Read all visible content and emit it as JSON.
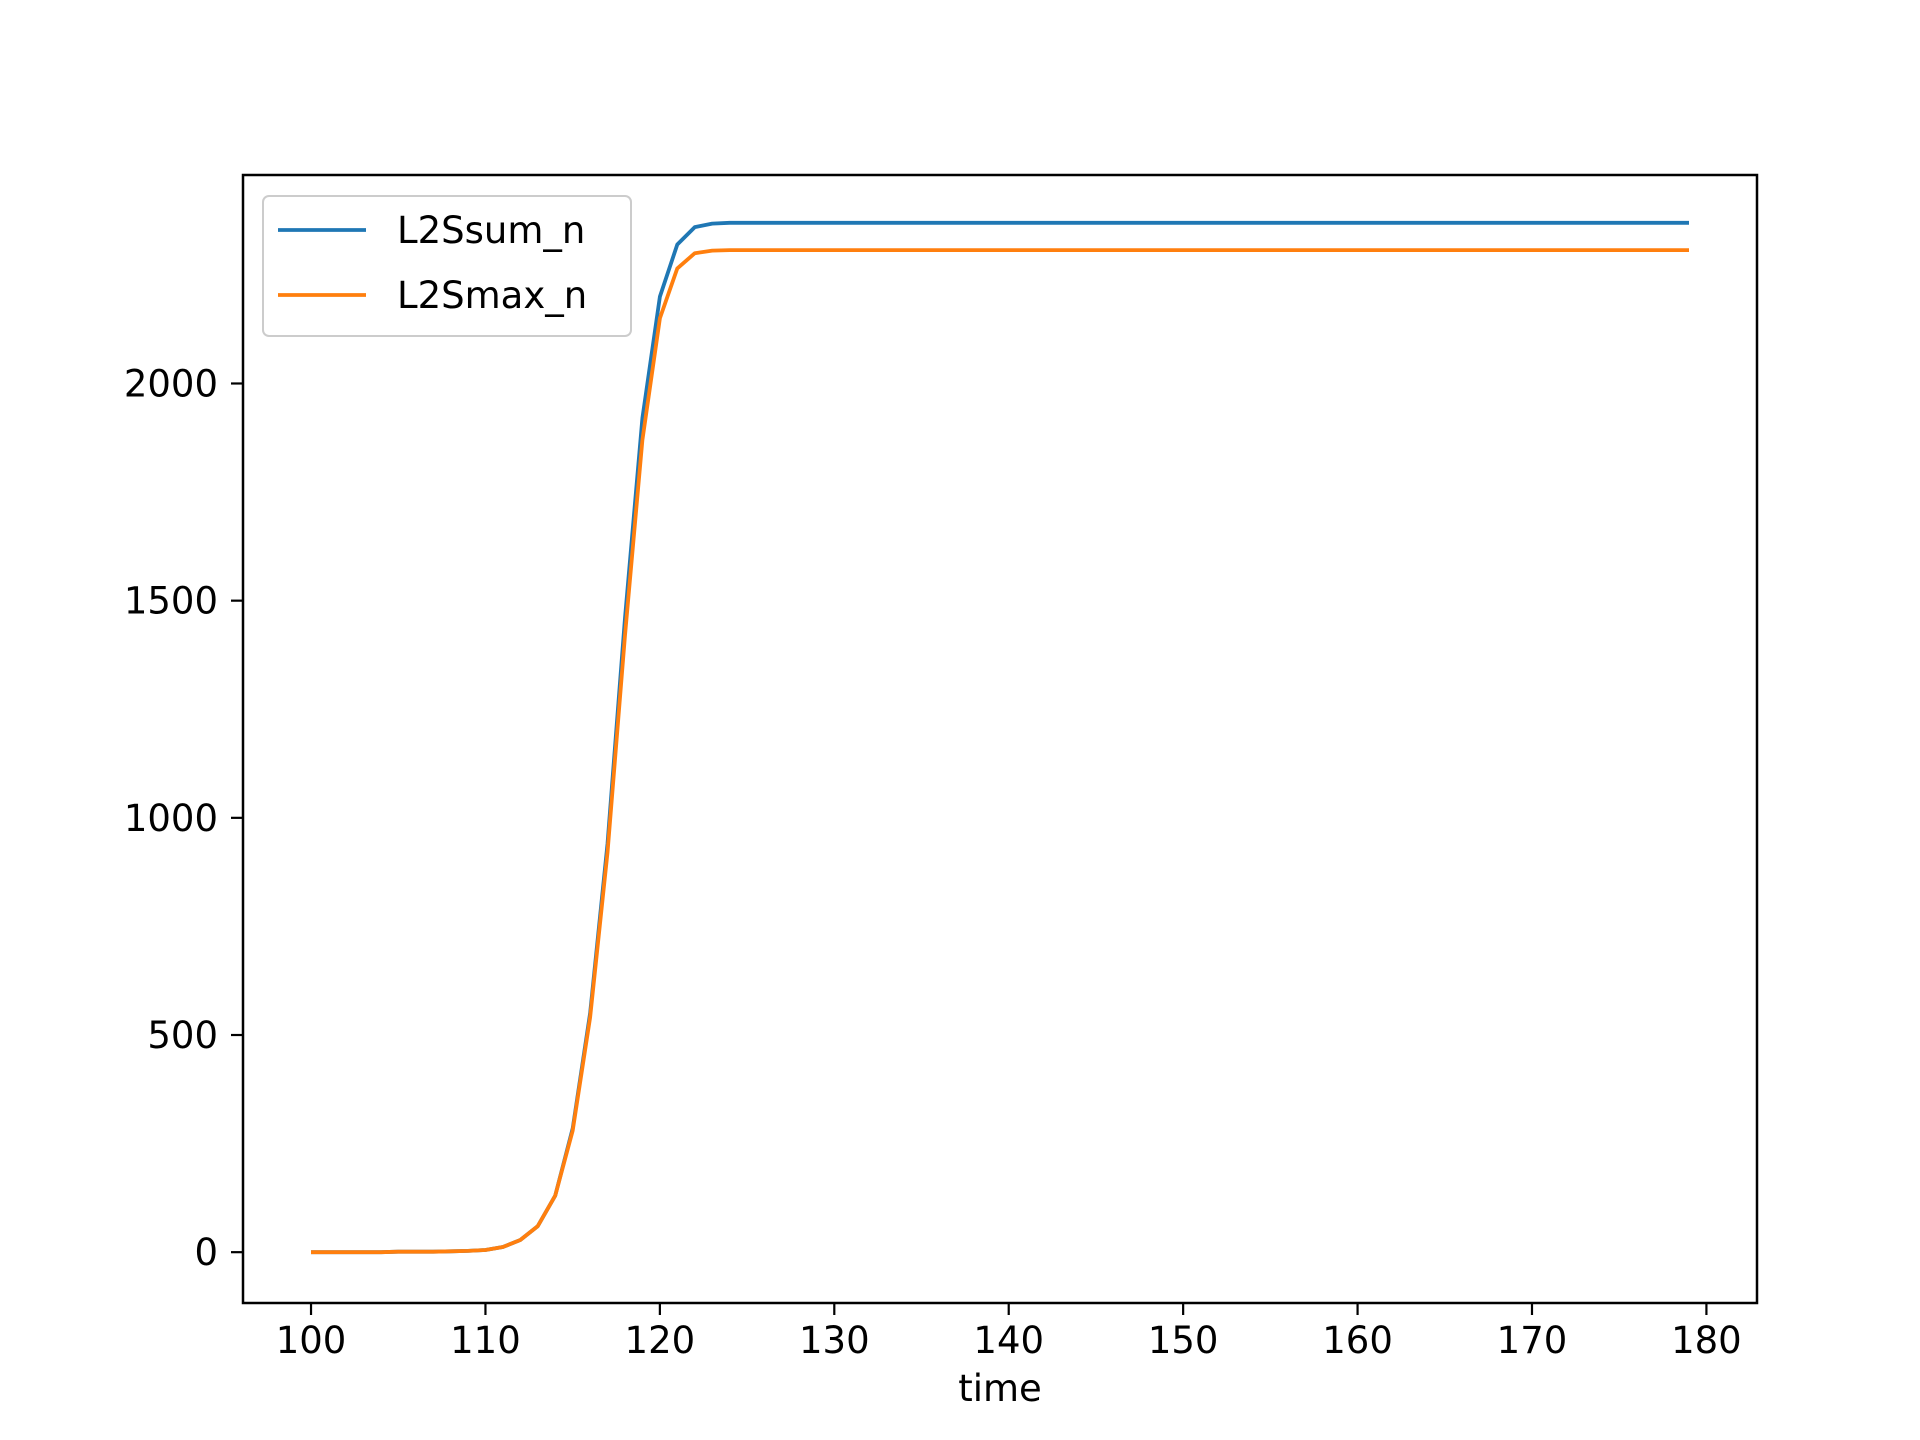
{
  "chart_data": {
    "type": "line",
    "xlabel": "time",
    "ylabel": "",
    "title": "",
    "xlim": [
      96.1,
      182.9
    ],
    "ylim": [
      -117,
      2480
    ],
    "xticks": [
      100,
      110,
      120,
      130,
      140,
      150,
      160,
      170,
      180
    ],
    "yticks": [
      0,
      500,
      1000,
      1500,
      2000
    ],
    "legend_position": "upper-left",
    "grid": false,
    "x": [
      100,
      101,
      102,
      103,
      104,
      105,
      106,
      107,
      108,
      109,
      110,
      111,
      112,
      113,
      114,
      115,
      116,
      117,
      118,
      119,
      120,
      121,
      122,
      123,
      124,
      125,
      126,
      127,
      128,
      129,
      130,
      131,
      132,
      133,
      134,
      135,
      136,
      137,
      138,
      139,
      140,
      141,
      142,
      143,
      144,
      145,
      146,
      147,
      148,
      149,
      150,
      151,
      152,
      153,
      154,
      155,
      156,
      157,
      158,
      159,
      160,
      161,
      162,
      163,
      164,
      165,
      166,
      167,
      168,
      169,
      170,
      171,
      172,
      173,
      174,
      175,
      176,
      177,
      178,
      179
    ],
    "series": [
      {
        "name": "L2Ssum_n",
        "color": "#1f77b4",
        "values": [
          0,
          0,
          0,
          0,
          0,
          1,
          1,
          1,
          2,
          3,
          5,
          12,
          28,
          60,
          130,
          285,
          550,
          940,
          1460,
          1920,
          2200,
          2320,
          2360,
          2368,
          2370,
          2370,
          2370,
          2370,
          2370,
          2370,
          2370,
          2370,
          2370,
          2370,
          2370,
          2370,
          2370,
          2370,
          2370,
          2370,
          2370,
          2370,
          2370,
          2370,
          2370,
          2370,
          2370,
          2370,
          2370,
          2370,
          2370,
          2370,
          2370,
          2370,
          2370,
          2370,
          2370,
          2370,
          2370,
          2370,
          2370,
          2370,
          2370,
          2370,
          2370,
          2370,
          2370,
          2370,
          2370,
          2370,
          2370,
          2370,
          2370,
          2370,
          2370,
          2370,
          2370,
          2370,
          2370,
          2370
        ]
      },
      {
        "name": "L2Smax_n",
        "color": "#ff7f0e",
        "values": [
          0,
          0,
          0,
          0,
          0,
          1,
          1,
          1,
          2,
          3,
          5,
          12,
          28,
          60,
          130,
          280,
          540,
          920,
          1420,
          1870,
          2150,
          2265,
          2300,
          2306,
          2307,
          2307,
          2307,
          2307,
          2307,
          2307,
          2307,
          2307,
          2307,
          2307,
          2307,
          2307,
          2307,
          2307,
          2307,
          2307,
          2307,
          2307,
          2307,
          2307,
          2307,
          2307,
          2307,
          2307,
          2307,
          2307,
          2307,
          2307,
          2307,
          2307,
          2307,
          2307,
          2307,
          2307,
          2307,
          2307,
          2307,
          2307,
          2307,
          2307,
          2307,
          2307,
          2307,
          2307,
          2307,
          2307,
          2307,
          2307,
          2307,
          2307,
          2307,
          2307,
          2307,
          2307,
          2307,
          2307
        ]
      }
    ]
  }
}
